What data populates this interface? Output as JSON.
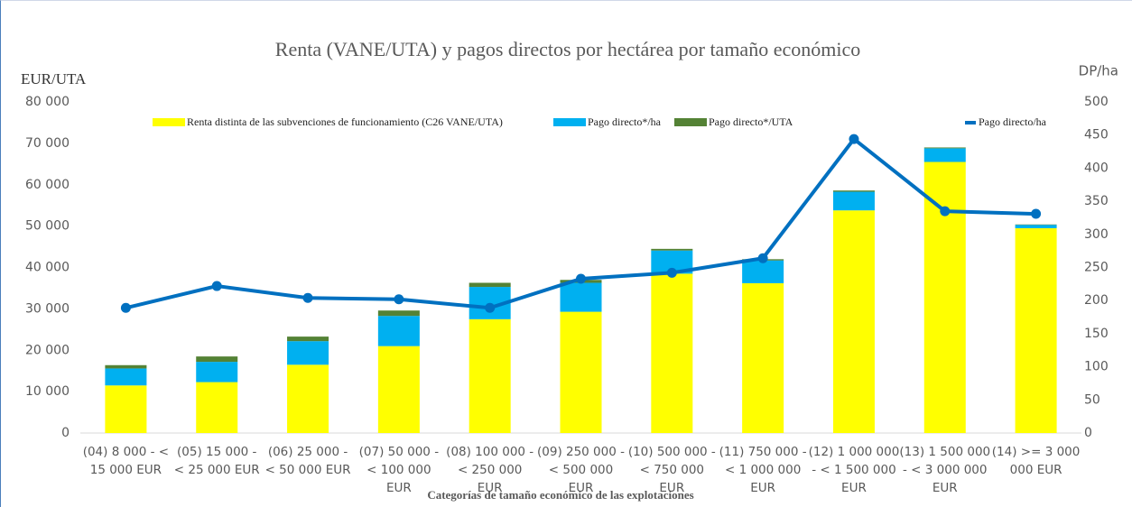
{
  "chart_data": {
    "type": "bar",
    "stacked": true,
    "title": "Renta (VANE/UTA) y pagos directos por hectárea por tamaño económico",
    "y_label": "EUR/UTA",
    "y2_label": "DP/ha",
    "x_label": "Categorías de tamaño económico de las explotaciones",
    "categories": [
      "(04) 8 000 - < 15 000 EUR",
      "(05) 15 000 - < 25 000 EUR",
      "(06) 25 000 - < 50 000 EUR",
      "(07) 50 000 - < 100 000 EUR",
      "(08) 100 000 - < 250 000 EUR",
      "(09) 250 000 - < 500 000 EUR",
      "(10) 500 000 - < 750 000 EUR",
      "(11) 750 000 - < 1 000 000 EUR",
      "(12) 1 000 000 - < 1 500 000 EUR",
      "(13) 1 500 000 - < 3 000 000 EUR",
      "(14) >= 3 000 000 EUR"
    ],
    "series": [
      {
        "name": "Renta distinta de las subvenciones de funcionamiento (C26 VANE/UTA)",
        "color": "#ffff00",
        "values": [
          11500,
          12300,
          16500,
          21000,
          27500,
          29300,
          38500,
          36200,
          53800,
          65500,
          49500
        ]
      },
      {
        "name": "Pago directo*/ha",
        "color": "#00b0f0",
        "values": [
          4100,
          4900,
          5700,
          7300,
          7800,
          7000,
          5600,
          5500,
          4500,
          3300,
          800
        ]
      },
      {
        "name": "Pago directo*/UTA",
        "color": "#548235",
        "values": [
          800,
          1300,
          1100,
          1300,
          1000,
          700,
          400,
          300,
          300,
          200,
          100
        ]
      },
      {
        "name": "Pago directo/ha",
        "color": "#0070c0",
        "type": "line",
        "axis": "y2",
        "values": [
          189,
          222,
          204,
          202,
          189,
          233,
          242,
          264,
          444,
          335,
          331
        ]
      }
    ],
    "ylim": [
      0,
      80000
    ],
    "yticks": [
      {
        "value": 0,
        "label": "0"
      },
      {
        "value": 10000,
        "label": "10 000"
      },
      {
        "value": 20000,
        "label": "20 000"
      },
      {
        "value": 30000,
        "label": "30 000"
      },
      {
        "value": 40000,
        "label": "40 000"
      },
      {
        "value": 50000,
        "label": "50 000"
      },
      {
        "value": 60000,
        "label": "60 000"
      },
      {
        "value": 70000,
        "label": "70 000"
      },
      {
        "value": 80000,
        "label": "80 000"
      }
    ],
    "y2lim": [
      0,
      500
    ],
    "y2ticks": [
      0,
      50,
      100,
      150,
      200,
      250,
      300,
      350,
      400,
      450,
      500
    ],
    "grid": false
  }
}
